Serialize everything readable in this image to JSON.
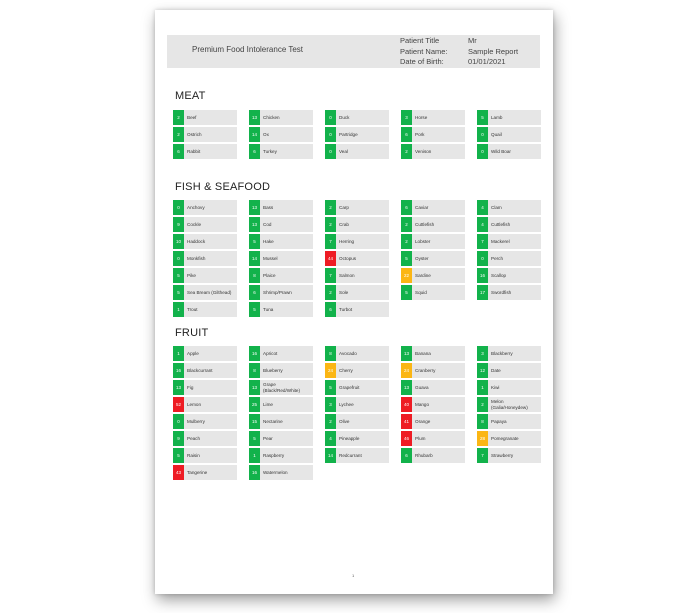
{
  "report": {
    "title": "Premium Food Intolerance Test",
    "patient": [
      {
        "label": "Patient Title",
        "value": "Mr"
      },
      {
        "label": "Patient Name:",
        "value": "Sample Report"
      },
      {
        "label": "Date of Birth:",
        "value": "01/01/2021"
      }
    ],
    "page_number": "1"
  },
  "colors": {
    "green": "#12b24b",
    "amber": "#fbb614",
    "red": "#ee1c24"
  },
  "sections": [
    {
      "title": "MEAT",
      "items": [
        {
          "score": "2",
          "name": "Beef",
          "level": "green"
        },
        {
          "score": "13",
          "name": "Chicken",
          "level": "green"
        },
        {
          "score": "0",
          "name": "Duck",
          "level": "green"
        },
        {
          "score": "3",
          "name": "Horse",
          "level": "green"
        },
        {
          "score": "5",
          "name": "Lamb",
          "level": "green"
        },
        {
          "score": "2",
          "name": "Ostrich",
          "level": "green"
        },
        {
          "score": "14",
          "name": "Ox",
          "level": "green"
        },
        {
          "score": "0",
          "name": "Partridge",
          "level": "green"
        },
        {
          "score": "6",
          "name": "Pork",
          "level": "green"
        },
        {
          "score": "0",
          "name": "Quail",
          "level": "green"
        },
        {
          "score": "6",
          "name": "Rabbit",
          "level": "green"
        },
        {
          "score": "6",
          "name": "Turkey",
          "level": "green"
        },
        {
          "score": "0",
          "name": "Veal",
          "level": "green"
        },
        {
          "score": "2",
          "name": "Venison",
          "level": "green"
        },
        {
          "score": "0",
          "name": "Wild Boar",
          "level": "green"
        }
      ]
    },
    {
      "title": "FISH & SEAFOOD",
      "items": [
        {
          "score": "0",
          "name": "Anchovy",
          "level": "green"
        },
        {
          "score": "13",
          "name": "Bass",
          "level": "green"
        },
        {
          "score": "2",
          "name": "Carp",
          "level": "green"
        },
        {
          "score": "6",
          "name": "Caviar",
          "level": "green"
        },
        {
          "score": "4",
          "name": "Clam",
          "level": "green"
        },
        {
          "score": "9",
          "name": "Cockle",
          "level": "green"
        },
        {
          "score": "13",
          "name": "Cod",
          "level": "green"
        },
        {
          "score": "2",
          "name": "Crab",
          "level": "green"
        },
        {
          "score": "2",
          "name": "Cuttlefish",
          "level": "green"
        },
        {
          "score": "4",
          "name": "Cuttlefish",
          "level": "green"
        },
        {
          "score": "10",
          "name": "Haddock",
          "level": "green"
        },
        {
          "score": "5",
          "name": "Hake",
          "level": "green"
        },
        {
          "score": "7",
          "name": "Herring",
          "level": "green"
        },
        {
          "score": "2",
          "name": "Lobster",
          "level": "green"
        },
        {
          "score": "7",
          "name": "Mackerel",
          "level": "green"
        },
        {
          "score": "0",
          "name": "Monkfish",
          "level": "green"
        },
        {
          "score": "14",
          "name": "Mussel",
          "level": "green"
        },
        {
          "score": "44",
          "name": "Octopus",
          "level": "red"
        },
        {
          "score": "5",
          "name": "Oyster",
          "level": "green"
        },
        {
          "score": "0",
          "name": "Perch",
          "level": "green"
        },
        {
          "score": "5",
          "name": "Pike",
          "level": "green"
        },
        {
          "score": "8",
          "name": "Plaice",
          "level": "green"
        },
        {
          "score": "7",
          "name": "Salmon",
          "level": "green"
        },
        {
          "score": "22",
          "name": "Sardine",
          "level": "amber"
        },
        {
          "score": "16",
          "name": "Scallop",
          "level": "green"
        },
        {
          "score": "5",
          "name": "Sea Bream (Gilthead)",
          "level": "green"
        },
        {
          "score": "6",
          "name": "Shrimp/Prawn",
          "level": "green"
        },
        {
          "score": "2",
          "name": "Sole",
          "level": "green"
        },
        {
          "score": "5",
          "name": "Squid",
          "level": "green"
        },
        {
          "score": "17",
          "name": "Swordfish",
          "level": "green"
        },
        {
          "score": "1",
          "name": "Trout",
          "level": "green"
        },
        {
          "score": "5",
          "name": "Tuna",
          "level": "green"
        },
        {
          "score": "6",
          "name": "Turbot",
          "level": "green"
        }
      ]
    },
    {
      "title": "FRUIT",
      "items": [
        {
          "score": "1",
          "name": "Apple",
          "level": "green"
        },
        {
          "score": "16",
          "name": "Apricot",
          "level": "green"
        },
        {
          "score": "8",
          "name": "Avocado",
          "level": "green"
        },
        {
          "score": "13",
          "name": "Banana",
          "level": "green"
        },
        {
          "score": "3",
          "name": "Blackberry",
          "level": "green"
        },
        {
          "score": "16",
          "name": "Blackcurrant",
          "level": "green"
        },
        {
          "score": "8",
          "name": "Blueberry",
          "level": "green"
        },
        {
          "score": "24",
          "name": "Cherry",
          "level": "amber"
        },
        {
          "score": "24",
          "name": "Cranberry",
          "level": "amber"
        },
        {
          "score": "12",
          "name": "Date",
          "level": "green"
        },
        {
          "score": "13",
          "name": "Fig",
          "level": "green"
        },
        {
          "score": "13",
          "name": "Grape (Black/Red/White)",
          "level": "green"
        },
        {
          "score": "5",
          "name": "Grapefruit",
          "level": "green"
        },
        {
          "score": "13",
          "name": "Guava",
          "level": "green"
        },
        {
          "score": "1",
          "name": "Kiwi",
          "level": "green"
        },
        {
          "score": "52",
          "name": "Lemon",
          "level": "red"
        },
        {
          "score": "25",
          "name": "Lime",
          "level": "green"
        },
        {
          "score": "3",
          "name": "Lychee",
          "level": "green"
        },
        {
          "score": "40",
          "name": "Mango",
          "level": "red"
        },
        {
          "score": "2",
          "name": "Melon (Galia/Honeydew)",
          "level": "green"
        },
        {
          "score": "0",
          "name": "Mulberry",
          "level": "green"
        },
        {
          "score": "15",
          "name": "Nectarine",
          "level": "green"
        },
        {
          "score": "2",
          "name": "Olive",
          "level": "green"
        },
        {
          "score": "41",
          "name": "Orange",
          "level": "red"
        },
        {
          "score": "8",
          "name": "Papaya",
          "level": "green"
        },
        {
          "score": "9",
          "name": "Peach",
          "level": "green"
        },
        {
          "score": "5",
          "name": "Pear",
          "level": "green"
        },
        {
          "score": "4",
          "name": "Pineapple",
          "level": "green"
        },
        {
          "score": "46",
          "name": "Plum",
          "level": "red"
        },
        {
          "score": "28",
          "name": "Pomegranate",
          "level": "amber"
        },
        {
          "score": "5",
          "name": "Raisin",
          "level": "green"
        },
        {
          "score": "1",
          "name": "Raspberry",
          "level": "green"
        },
        {
          "score": "14",
          "name": "Redcurrant",
          "level": "green"
        },
        {
          "score": "6",
          "name": "Rhubarb",
          "level": "green"
        },
        {
          "score": "7",
          "name": "Strawberry",
          "level": "green"
        },
        {
          "score": "43",
          "name": "Tangerine",
          "level": "red"
        },
        {
          "score": "16",
          "name": "Watermelon",
          "level": "green"
        }
      ]
    }
  ]
}
